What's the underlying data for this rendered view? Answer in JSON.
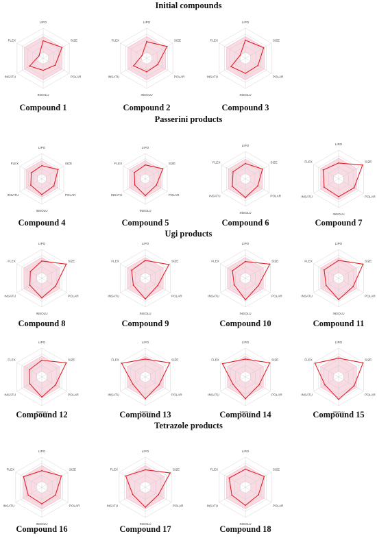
{
  "colors": {
    "zone_fill": "#f9dbe3",
    "zone_stroke": "#f2b8c6",
    "line": "#e0202a",
    "grid": "#c8c8c8"
  },
  "sections": [
    {
      "title": "Initial compounds"
    },
    {
      "title": "Passerini products"
    },
    {
      "title": "Ugi products"
    },
    {
      "title": "Tetrazole products"
    }
  ],
  "chart_data": [
    {
      "type": "radar",
      "title": "Compound 1",
      "axes": [
        "LIPO",
        "SIZE",
        "POLAR",
        "INSOLU",
        "INSATU",
        "FLEX"
      ],
      "values": [
        0.58,
        0.72,
        0.46,
        0.4,
        0.52,
        0.16
      ]
    },
    {
      "type": "radar",
      "title": "Compound 2",
      "axes": [
        "LIPO",
        "SIZE",
        "POLAR",
        "INSOLU",
        "INSATU",
        "FLEX"
      ],
      "values": [
        0.55,
        0.78,
        0.42,
        0.45,
        0.5,
        0.18
      ]
    },
    {
      "type": "radar",
      "title": "Compound 3",
      "axes": [
        "LIPO",
        "SIZE",
        "POLAR",
        "INSOLU",
        "INSATU",
        "FLEX"
      ],
      "values": [
        0.6,
        0.7,
        0.48,
        0.5,
        0.55,
        0.2
      ]
    },
    {
      "type": "radar",
      "title": "Compound 4",
      "axes": [
        "LIPO",
        "SIZE",
        "POLAR",
        "INSOLU",
        "INSATU",
        "FLEX"
      ],
      "values": [
        0.52,
        0.74,
        0.55,
        0.62,
        0.5,
        0.48
      ]
    },
    {
      "type": "radar",
      "title": "Compound 5",
      "axes": [
        "LIPO",
        "SIZE",
        "POLAR",
        "INSOLU",
        "INSATU",
        "FLEX"
      ],
      "values": [
        0.55,
        0.8,
        0.5,
        0.66,
        0.48,
        0.5
      ]
    },
    {
      "type": "radar",
      "title": "Compound 6",
      "axes": [
        "LIPO",
        "SIZE",
        "POLAR",
        "INSOLU",
        "INSATU",
        "FLEX"
      ],
      "values": [
        0.56,
        0.72,
        0.52,
        0.68,
        0.55,
        0.52
      ]
    },
    {
      "type": "radar",
      "title": "Compound 7",
      "axes": [
        "LIPO",
        "SIZE",
        "POLAR",
        "INSOLU",
        "INSATU",
        "FLEX"
      ],
      "values": [
        0.55,
        0.96,
        0.62,
        0.62,
        0.58,
        0.62
      ]
    },
    {
      "type": "radar",
      "title": "Compound 8",
      "axes": [
        "LIPO",
        "SIZE",
        "POLAR",
        "INSOLU",
        "INSATU",
        "FLEX"
      ],
      "values": [
        0.6,
        0.98,
        0.55,
        0.68,
        0.48,
        0.46
      ]
    },
    {
      "type": "radar",
      "title": "Compound 9",
      "axes": [
        "LIPO",
        "SIZE",
        "POLAR",
        "INSOLU",
        "INSATU",
        "FLEX"
      ],
      "values": [
        0.62,
        0.95,
        0.5,
        0.72,
        0.48,
        0.55
      ]
    },
    {
      "type": "radar",
      "title": "Compound 10",
      "axes": [
        "LIPO",
        "SIZE",
        "POLAR",
        "INSOLU",
        "INSATU",
        "FLEX"
      ],
      "values": [
        0.58,
        0.98,
        0.52,
        0.75,
        0.45,
        0.52
      ]
    },
    {
      "type": "radar",
      "title": "Compound 11",
      "axes": [
        "LIPO",
        "SIZE",
        "POLAR",
        "INSOLU",
        "INSATU",
        "FLEX"
      ],
      "values": [
        0.62,
        0.98,
        0.58,
        0.74,
        0.5,
        0.58
      ]
    },
    {
      "type": "radar",
      "title": "Compound 12",
      "axes": [
        "LIPO",
        "SIZE",
        "POLAR",
        "INSOLU",
        "INSATU",
        "FLEX"
      ],
      "values": [
        0.58,
        0.98,
        0.55,
        0.7,
        0.48,
        0.5
      ]
    },
    {
      "type": "radar",
      "title": "Compound 13",
      "axes": [
        "LIPO",
        "SIZE",
        "POLAR",
        "INSOLU",
        "INSATU",
        "FLEX"
      ],
      "values": [
        0.62,
        0.98,
        0.55,
        0.76,
        0.5,
        0.95
      ]
    },
    {
      "type": "radar",
      "title": "Compound 14",
      "axes": [
        "LIPO",
        "SIZE",
        "POLAR",
        "INSOLU",
        "INSATU",
        "FLEX"
      ],
      "values": [
        0.62,
        0.98,
        0.55,
        0.76,
        0.5,
        0.92
      ]
    },
    {
      "type": "radar",
      "title": "Compound 15",
      "axes": [
        "LIPO",
        "SIZE",
        "POLAR",
        "INSOLU",
        "INSATU",
        "FLEX"
      ],
      "values": [
        0.65,
        0.98,
        0.62,
        0.78,
        0.55,
        0.95
      ]
    },
    {
      "type": "radar",
      "title": "Compound 16",
      "axes": [
        "LIPO",
        "SIZE",
        "POLAR",
        "INSOLU",
        "INSATU",
        "FLEX"
      ],
      "values": [
        0.55,
        0.75,
        0.52,
        0.55,
        0.52,
        0.7
      ]
    },
    {
      "type": "radar",
      "title": "Compound 17",
      "axes": [
        "LIPO",
        "SIZE",
        "POLAR",
        "INSOLU",
        "INSATU",
        "FLEX"
      ],
      "values": [
        0.58,
        0.95,
        0.5,
        0.66,
        0.48,
        0.75
      ]
    },
    {
      "type": "radar",
      "title": "Compound 18",
      "axes": [
        "LIPO",
        "SIZE",
        "POLAR",
        "INSOLU",
        "INSATU",
        "FLEX"
      ],
      "values": [
        0.6,
        0.72,
        0.5,
        0.6,
        0.52,
        0.62
      ]
    }
  ]
}
